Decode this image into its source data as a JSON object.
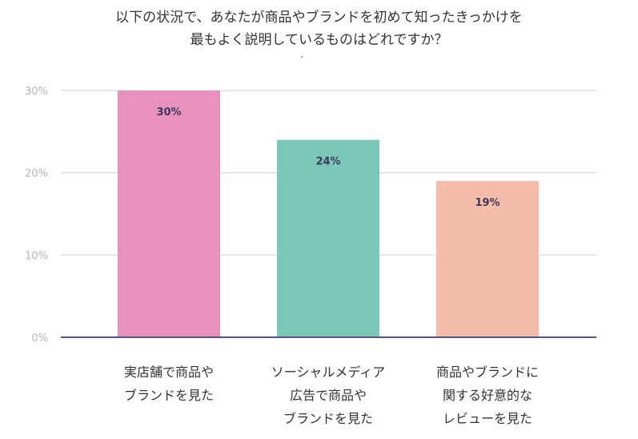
{
  "chart_data": {
    "type": "bar",
    "title": [
      "以下の状況で、あなたが商品やブランドを初めて知ったきっかけを",
      "最もよく説明しているものはどれですか？"
    ],
    "categories": [
      [
        "実店舗で商品や",
        "ブランドを見た"
      ],
      [
        "ソーシャルメディア",
        "広告で商品や",
        "ブランドを見た"
      ],
      [
        "商品やブランドに",
        "関する好意的な",
        "レビューを見た"
      ]
    ],
    "values": [
      30,
      24,
      19
    ],
    "value_labels": [
      "30%",
      "24%",
      "19%"
    ],
    "colors": [
      "#e891bd",
      "#7cc8b8",
      "#f5bca9"
    ],
    "ylim": [
      0,
      30
    ],
    "yticks": [
      0,
      10,
      20,
      30
    ],
    "ytick_labels": [
      "0%",
      "10%",
      "20%",
      "30%"
    ],
    "grid": true,
    "xlabel": "",
    "ylabel": ""
  }
}
